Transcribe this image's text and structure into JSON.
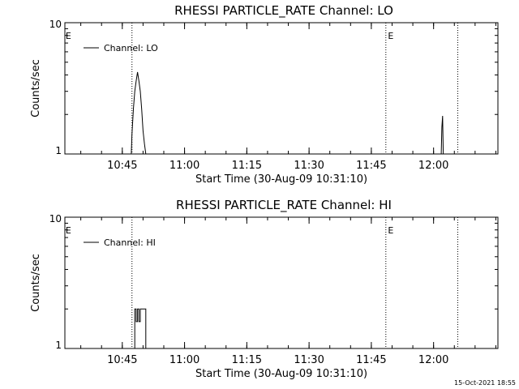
{
  "chart_data": [
    {
      "type": "line",
      "title": "RHESSI PARTICLE_RATE Channel: LO",
      "xlabel": "Start Time (30-Aug-09 10:31:10)",
      "ylabel": "Counts/sec",
      "y_scale": "log",
      "ylim": [
        1,
        10
      ],
      "ytick_labels": [
        "1",
        "10"
      ],
      "xlim": [
        "10:31:10",
        "12:15:30"
      ],
      "xtick_labels": [
        "10:45",
        "11:00",
        "11:15",
        "11:30",
        "11:45",
        "12:00"
      ],
      "legend": {
        "label": "Channel: LO",
        "placement": "top-left"
      },
      "event_lines": [
        "10:47:20",
        "11:48:30",
        "12:05:50"
      ],
      "event_flags": [
        {
          "label": "E",
          "x": "10:31:20"
        },
        {
          "label": "E",
          "x": "11:49:00"
        }
      ],
      "series": [
        {
          "name": "Channel: LO",
          "x": [
            "10:47:10",
            "10:47:20",
            "10:47:40",
            "10:48:00",
            "10:48:20",
            "10:48:40",
            "10:49:00",
            "10:49:20",
            "10:49:40",
            "10:50:00",
            "10:50:20",
            "10:50:40",
            "12:01:50",
            "12:02:00",
            "12:02:10",
            "12:02:20"
          ],
          "y": [
            1.0,
            1.4,
            2.2,
            3.0,
            3.6,
            4.2,
            3.6,
            3.0,
            2.2,
            1.5,
            1.2,
            1.0,
            1.0,
            1.6,
            1.95,
            1.0
          ]
        }
      ]
    },
    {
      "type": "line",
      "title": "RHESSI PARTICLE_RATE Channel: HI",
      "xlabel": "Start Time (30-Aug-09 10:31:10)",
      "ylabel": "Counts/sec",
      "y_scale": "log",
      "ylim": [
        1,
        10
      ],
      "ytick_labels": [
        "1",
        "10"
      ],
      "xlim": [
        "10:31:10",
        "12:15:30"
      ],
      "xtick_labels": [
        "10:45",
        "11:00",
        "11:15",
        "11:30",
        "11:45",
        "12:00"
      ],
      "legend": {
        "label": "Channel: HI",
        "placement": "top-left"
      },
      "event_lines": [
        "10:47:20",
        "11:48:30",
        "12:05:50"
      ],
      "event_flags": [
        {
          "label": "E",
          "x": "10:31:20"
        },
        {
          "label": "E",
          "x": "11:49:00"
        }
      ],
      "series": [
        {
          "name": "Channel: HI",
          "x": [
            "10:47:40",
            "10:48:00",
            "10:48:20",
            "10:48:40",
            "10:49:00",
            "10:49:20",
            "10:49:40",
            "10:50:00",
            "10:50:20",
            "10:50:40"
          ],
          "y": [
            1.0,
            2.0,
            1.6,
            2.0,
            1.6,
            2.0,
            2.0,
            2.0,
            2.0,
            1.0
          ],
          "step": true
        }
      ]
    }
  ],
  "footer": {
    "timestamp": "15-Oct-2021 18:55"
  }
}
